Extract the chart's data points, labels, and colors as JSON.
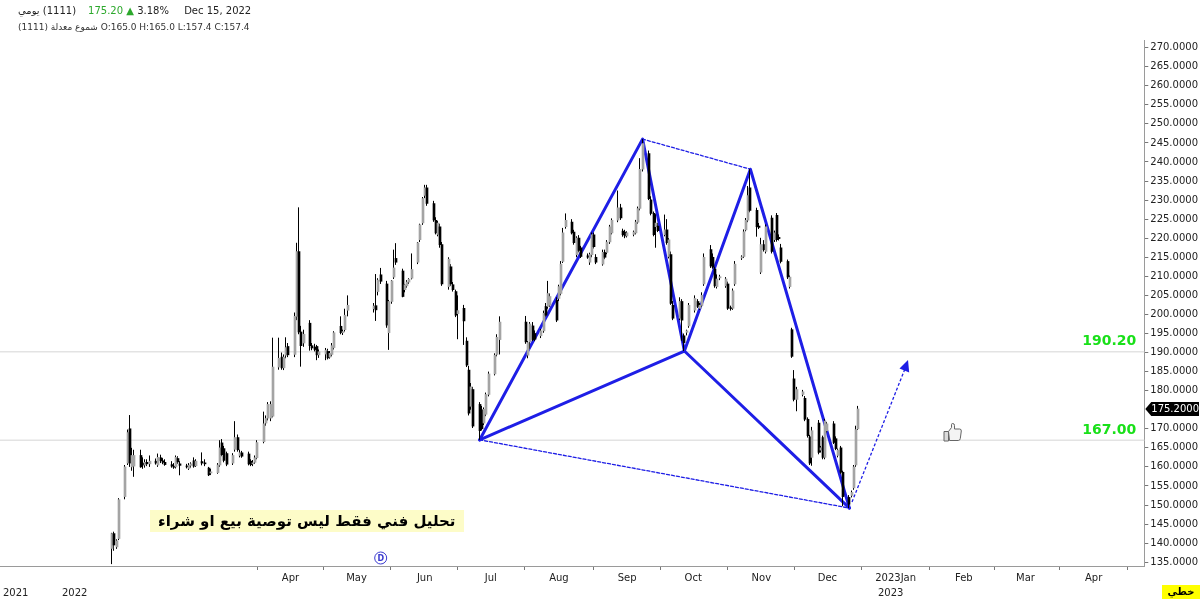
{
  "chart_data": {
    "type": "candlestick",
    "title": "(1111) يومي",
    "subtitle": "175.20 ▲ 3.18% Dec 15, 2022",
    "color": "#000000",
    "x": [
      "2022-01-10",
      "2022-01-11",
      "2022-01-12",
      "2022-01-13",
      "2022-01-16",
      "2022-01-17",
      "2022-01-18",
      "2022-01-19",
      "2022-01-20",
      "2022-01-23",
      "2022-01-24",
      "2022-01-25",
      "2022-01-26",
      "2022-01-27",
      "2022-01-30",
      "2022-01-31",
      "2022-02-01",
      "2022-02-02",
      "2022-02-03",
      "2022-02-06",
      "2022-02-07",
      "2022-02-08",
      "2022-02-09",
      "2022-02-10",
      "2022-02-13",
      "2022-02-14",
      "2022-02-15",
      "2022-02-16",
      "2022-02-17",
      "2022-02-20",
      "2022-02-21",
      "2022-02-23",
      "2022-02-24",
      "2022-02-27",
      "2022-02-28",
      "2022-03-01",
      "2022-03-02",
      "2022-03-03",
      "2022-03-06",
      "2022-03-07",
      "2022-03-08",
      "2022-03-09",
      "2022-03-10",
      "2022-03-13",
      "2022-03-14",
      "2022-03-15",
      "2022-03-16",
      "2022-03-17",
      "2022-03-20",
      "2022-03-21",
      "2022-03-22",
      "2022-03-23",
      "2022-03-24",
      "2022-03-27",
      "2022-03-28",
      "2022-03-29",
      "2022-03-30",
      "2022-03-31",
      "2022-04-03",
      "2022-04-04",
      "2022-04-05",
      "2022-04-06",
      "2022-04-07",
      "2022-04-10",
      "2022-04-11",
      "2022-04-12",
      "2022-04-13",
      "2022-04-14",
      "2022-04-17",
      "2022-04-18",
      "2022-04-19",
      "2022-04-20",
      "2022-04-21",
      "2022-04-24",
      "2022-04-25",
      "2022-04-26",
      "2022-04-27",
      "2022-05-09",
      "2022-05-10",
      "2022-05-11",
      "2022-05-12",
      "2022-05-15",
      "2022-05-16",
      "2022-05-17",
      "2022-05-18",
      "2022-05-19",
      "2022-05-22",
      "2022-05-23",
      "2022-05-24",
      "2022-05-25",
      "2022-05-26",
      "2022-05-29",
      "2022-05-30",
      "2022-05-31",
      "2022-06-01",
      "2022-06-02",
      "2022-06-05",
      "2022-06-06",
      "2022-06-07",
      "2022-06-08",
      "2022-06-09",
      "2022-06-12",
      "2022-06-13",
      "2022-06-14",
      "2022-06-15",
      "2022-06-16",
      "2022-06-19",
      "2022-06-20",
      "2022-06-21",
      "2022-06-22",
      "2022-06-23",
      "2022-06-26",
      "2022-06-27",
      "2022-06-28",
      "2022-06-29",
      "2022-06-30",
      "2022-07-03",
      "2022-07-04",
      "2022-07-05",
      "2022-07-17",
      "2022-07-18",
      "2022-07-19",
      "2022-07-20",
      "2022-07-21",
      "2022-07-24",
      "2022-07-25",
      "2022-07-26",
      "2022-07-27",
      "2022-07-28",
      "2022-07-31",
      "2022-08-01",
      "2022-08-02",
      "2022-08-03",
      "2022-08-04",
      "2022-08-07",
      "2022-08-08",
      "2022-08-09",
      "2022-08-10",
      "2022-08-11",
      "2022-08-14",
      "2022-08-15",
      "2022-08-16",
      "2022-08-17",
      "2022-08-18",
      "2022-08-21",
      "2022-08-22",
      "2022-08-23",
      "2022-08-24",
      "2022-08-25",
      "2022-08-28",
      "2022-08-29",
      "2022-08-30",
      "2022-08-31",
      "2022-09-01",
      "2022-09-04",
      "2022-09-05",
      "2022-09-06",
      "2022-09-07",
      "2022-09-08",
      "2022-09-11",
      "2022-09-12",
      "2022-09-13",
      "2022-09-14",
      "2022-09-15",
      "2022-09-18",
      "2022-09-19",
      "2022-09-20",
      "2022-09-21",
      "2022-09-22",
      "2022-09-25",
      "2022-09-26",
      "2022-09-27",
      "2022-09-28",
      "2022-09-29",
      "2022-10-02",
      "2022-10-03",
      "2022-10-04",
      "2022-10-05",
      "2022-10-06",
      "2022-10-09",
      "2022-10-10",
      "2022-10-11",
      "2022-10-12",
      "2022-10-13",
      "2022-10-16",
      "2022-10-17",
      "2022-10-18",
      "2022-10-19",
      "2022-10-20",
      "2022-10-23",
      "2022-10-24",
      "2022-10-25",
      "2022-10-26",
      "2022-10-27",
      "2022-10-30",
      "2022-10-31",
      "2022-11-01",
      "2022-11-02",
      "2022-11-03",
      "2022-11-06",
      "2022-11-07",
      "2022-11-08",
      "2022-11-09",
      "2022-11-10",
      "2022-11-13",
      "2022-11-14",
      "2022-11-15",
      "2022-11-16",
      "2022-11-17",
      "2022-11-20",
      "2022-11-21",
      "2022-11-22",
      "2022-11-23",
      "2022-11-24",
      "2022-11-27",
      "2022-11-28",
      "2022-11-29",
      "2022-11-30",
      "2022-12-01",
      "2022-12-04",
      "2022-12-05",
      "2022-12-06",
      "2022-12-07",
      "2022-12-08",
      "2022-12-11",
      "2022-12-12",
      "2022-12-13",
      "2022-12-14",
      "2022-12-15"
    ],
    "ohlc": [
      [
        138.6,
        142.7,
        134.5,
        142.5
      ],
      [
        142.5,
        143,
        138,
        139.5
      ],
      [
        139,
        141,
        138.5,
        140.6
      ],
      [
        141.2,
        151.8,
        140.8,
        151.4
      ],
      [
        152.2,
        160.5,
        151.5,
        160
      ],
      [
        161,
        169.8,
        160.5,
        169
      ],
      [
        170,
        173.6,
        160,
        161
      ],
      [
        160,
        165,
        159,
        163
      ],
      [
        160.2,
        164.5,
        157.4,
        163
      ],
      [
        163,
        164.5,
        159.8,
        160
      ],
      [
        161,
        162.5,
        159.5,
        160.5
      ],
      [
        160.5,
        162,
        159.8,
        161.2
      ],
      [
        161.2,
        162,
        160.2,
        160.8
      ],
      [
        160.8,
        163,
        160,
        161.5
      ],
      [
        161.5,
        162.2,
        160.6,
        161
      ],
      [
        160.5,
        163.5,
        160,
        162.5
      ],
      [
        162.4,
        163.2,
        161,
        161.6
      ],
      [
        161.6,
        162.3,
        160.7,
        161.2
      ],
      [
        161.2,
        162,
        160.3,
        160.6
      ],
      [
        160.6,
        161.5,
        159.8,
        160.2
      ],
      [
        160.2,
        161,
        159.5,
        159.9
      ],
      [
        160,
        163,
        159.6,
        162.5
      ],
      [
        162.2,
        162.8,
        160.8,
        161.3
      ],
      [
        160.8,
        161.5,
        157.8,
        160.4
      ],
      [
        160.2,
        160.8,
        159.6,
        160
      ],
      [
        159.6,
        161,
        159.2,
        160.4
      ],
      [
        160.4,
        161.2,
        159.8,
        160.8
      ],
      [
        161.6,
        162.5,
        159.8,
        160.2
      ],
      [
        160.3,
        162,
        160,
        161.5
      ],
      [
        161.4,
        163.8,
        160.4,
        161
      ],
      [
        161,
        162,
        160.2,
        160.8
      ],
      [
        159.7,
        160,
        157.6,
        157.9
      ],
      [
        158.4,
        159.5,
        157.9,
        158.7
      ],
      [
        158.5,
        161,
        158.2,
        160.5
      ],
      [
        160.5,
        167,
        160,
        165
      ],
      [
        166.3,
        167.3,
        162.8,
        163.2
      ],
      [
        164.8,
        165.5,
        161.2,
        161.7
      ],
      [
        163.5,
        164,
        160.2,
        160.7
      ],
      [
        161,
        163.6,
        160.5,
        163
      ],
      [
        164.6,
        172,
        164,
        167.7
      ],
      [
        167.7,
        168.5,
        164,
        164.5
      ],
      [
        163,
        164.5,
        162.5,
        163.7
      ],
      [
        163.7,
        164.2,
        162.4,
        162.8
      ],
      [
        163.4,
        164,
        160.4,
        160.8
      ],
      [
        161.5,
        162,
        160.2,
        160.6
      ],
      [
        160.8,
        161.8,
        160.2,
        161
      ],
      [
        161.2,
        163,
        160.8,
        162.4
      ],
      [
        162.4,
        167,
        162,
        166.4
      ],
      [
        166.6,
        174.5,
        166.2,
        171.3
      ],
      [
        171.5,
        173.5,
        170.8,
        172.7
      ],
      [
        172.8,
        177,
        172.2,
        176.4
      ],
      [
        172.8,
        177.2,
        172,
        176.4
      ],
      [
        173.3,
        193.9,
        173,
        186.2
      ],
      [
        186.2,
        193.9,
        185.5,
        188.5
      ],
      [
        188.8,
        190,
        185.5,
        186
      ],
      [
        186,
        189.5,
        185.4,
        188.8
      ],
      [
        189.3,
        194,
        188.5,
        191.3
      ],
      [
        191.6,
        192.5,
        188.8,
        189.4
      ],
      [
        189.5,
        200.5,
        188.8,
        199.5
      ],
      [
        199.5,
        218.8,
        198.5,
        216.5
      ],
      [
        216.5,
        228.1,
        194.8,
        195.4
      ],
      [
        195.4,
        197,
        186.3,
        191.8
      ],
      [
        192.5,
        196,
        191.5,
        194.8
      ],
      [
        197.7,
        198.5,
        190.5,
        191.8
      ],
      [
        191.8,
        192.5,
        190.6,
        191.2
      ],
      [
        191.4,
        192.3,
        190.3,
        190.8
      ],
      [
        191.6,
        192,
        188,
        189.4
      ],
      [
        189.4,
        190.8,
        188.6,
        190.2
      ],
      [
        189.6,
        191.2,
        188,
        190.6
      ],
      [
        190.3,
        191,
        188.2,
        188.6
      ],
      [
        188.8,
        190.4,
        188.4,
        189.8
      ],
      [
        189.5,
        192.5,
        189,
        191.8
      ],
      [
        191.3,
        195.6,
        190.8,
        195.2
      ],
      [
        196.9,
        199.5,
        194.8,
        195.2
      ],
      [
        195.2,
        196,
        194.6,
        195.5
      ],
      [
        196,
        201.5,
        195.5,
        199.8
      ],
      [
        201.1,
        205,
        199.5,
        202.4
      ],
      [
        201.5,
        203,
        200.5,
        202.2
      ],
      [
        202.3,
        210.6,
        198.3,
        201.2
      ],
      [
        206,
        209.5,
        205,
        209
      ],
      [
        210.4,
        212.2,
        208,
        208.7
      ],
      [
        208,
        208.8,
        196.5,
        197.2
      ],
      [
        195.2,
        203.8,
        190.7,
        203.4
      ],
      [
        203.4,
        209,
        202.8,
        208.8
      ],
      [
        209.8,
        217,
        209.3,
        212.2
      ],
      [
        214.7,
        218.7,
        213,
        213.7
      ],
      [
        211.4,
        212,
        204.5,
        204.7
      ],
      [
        206.5,
        208,
        205.8,
        207.8
      ],
      [
        207.5,
        209,
        207,
        208.5
      ],
      [
        208.5,
        209.5,
        208,
        209.2
      ],
      [
        209.5,
        216,
        209.2,
        211.8
      ],
      [
        213.7,
        219,
        213.2,
        218.8
      ],
      [
        219.6,
        223.8,
        219,
        223.5
      ],
      [
        224,
        230.8,
        223.5,
        230.4
      ],
      [
        231.2,
        234,
        230.5,
        233.2
      ],
      [
        233.2,
        234,
        228.5,
        229.1
      ],
      [
        229.1,
        229.8,
        224.3,
        224.8
      ],
      [
        224.7,
        225.5,
        221,
        221.4
      ],
      [
        221,
        224.5,
        220.5,
        224
      ],
      [
        223,
        223.8,
        217.5,
        218.3
      ],
      [
        218.3,
        219,
        207.5,
        208
      ],
      [
        207.3,
        215,
        206.5,
        214.5
      ],
      [
        212.5,
        213.2,
        207.5,
        208
      ],
      [
        207.8,
        208.5,
        206,
        206.5
      ],
      [
        206,
        206.5,
        199.3,
        199.8
      ],
      [
        200.2,
        205,
        193.5,
        201
      ],
      [
        201.6,
        202.5,
        192,
        198.3
      ],
      [
        193,
        194,
        186.2,
        186.7
      ],
      [
        185.4,
        186.5,
        173.5,
        174.1
      ],
      [
        175.9,
        182,
        175,
        181
      ],
      [
        180.3,
        181,
        170.2,
        170.7
      ],
      [
        176.4,
        177,
        167.1,
        169.5
      ],
      [
        175,
        176,
        169.6,
        170
      ],
      [
        171.5,
        175.6,
        171,
        175.1
      ],
      [
        173.8,
        179.5,
        173.3,
        179
      ],
      [
        179,
        185,
        178.5,
        184.4
      ],
      [
        184.4,
        189.8,
        184,
        189.3
      ],
      [
        189.5,
        194.8,
        189,
        194
      ],
      [
        193.4,
        199.5,
        189.5,
        198
      ],
      [
        198,
        199.6,
        192.3,
        192.8
      ],
      [
        189.3,
        193,
        188.5,
        192.6
      ],
      [
        192.8,
        198,
        191,
        197.5
      ],
      [
        197,
        198,
        193,
        193.4
      ],
      [
        195,
        195.8,
        193,
        193.5
      ],
      [
        194.4,
        196.2,
        193.8,
        195.7
      ],
      [
        195.7,
        201,
        195.2,
        200.3
      ],
      [
        202.1,
        203,
        199.4,
        199.8
      ],
      [
        202.1,
        208.8,
        201.5,
        205.5
      ],
      [
        202.4,
        205.5,
        202,
        204.7
      ],
      [
        203.7,
        204.5,
        198,
        198.5
      ],
      [
        204.2,
        207.8,
        203.5,
        207.3
      ],
      [
        205.5,
        214,
        205,
        213.2
      ],
      [
        213.9,
        222.7,
        213.5,
        221.4
      ],
      [
        223,
        226.5,
        222.5,
        224.7
      ],
      [
        224.2,
        225,
        221,
        221.4
      ],
      [
        221.6,
        222.2,
        218.3,
        218.8
      ],
      [
        215.7,
        220.5,
        215,
        220
      ],
      [
        220,
        220.8,
        216.3,
        216.8
      ],
      [
        217.5,
        218,
        214.8,
        215.2
      ],
      [
        215.4,
        216,
        214.6,
        215
      ],
      [
        213.7,
        216.2,
        213,
        215.7
      ],
      [
        215.7,
        221.5,
        215,
        220.9
      ],
      [
        220.9,
        221.5,
        217.3,
        217.8
      ],
      [
        215,
        215.8,
        213.2,
        213.7
      ],
      [
        213.2,
        217,
        212.8,
        216.3
      ],
      [
        216.3,
        217,
        214.5,
        215
      ],
      [
        216.3,
        219.5,
        215.8,
        219
      ],
      [
        219,
        223.5,
        218.5,
        223
      ],
      [
        221.4,
        225.2,
        221,
        224.7
      ],
      [
        224.7,
        232.5,
        224.2,
        228
      ],
      [
        228,
        229,
        224.8,
        225.3
      ],
      [
        221.9,
        222.5,
        220.4,
        220.9
      ],
      [
        221.6,
        222.2,
        220,
        220.6
      ],
      [
        220.6,
        221.8,
        220.2,
        221.4
      ],
      [
        221,
        222,
        220.5,
        221.6
      ],
      [
        221.4,
        224.8,
        221,
        224.2
      ],
      [
        224.2,
        228.3,
        223.8,
        227.8
      ],
      [
        227.8,
        241,
        227.3,
        238.1
      ],
      [
        238.1,
        246,
        237.5,
        244.8
      ],
      [
        242.2,
        243,
        230,
        230.4
      ],
      [
        230.1,
        231,
        226,
        226.5
      ],
      [
        226.5,
        227,
        220.5,
        220.9
      ],
      [
        223,
        226.3,
        217.5,
        224
      ],
      [
        223.2,
        224,
        221.6,
        222
      ],
      [
        220.9,
        226.2,
        220.5,
        222.2
      ],
      [
        222.2,
        225,
        218.3,
        218.8
      ],
      [
        215.2,
        220,
        214.7,
        219.6
      ],
      [
        215.7,
        216.5,
        202.5,
        202.9
      ],
      [
        202.4,
        203.5,
        198.5,
        199
      ],
      [
        199,
        204.5,
        198.5,
        203.4
      ],
      [
        203.4,
        204,
        193.1,
        198.5
      ],
      [
        194.4,
        195,
        190.4,
        192.6
      ],
      [
        195.3,
        196,
        194.5,
        195.7
      ],
      [
        197,
        203,
        196.5,
        202.4
      ],
      [
        201.1,
        205,
        200.5,
        204.2
      ],
      [
        203.4,
        204,
        201.7,
        202.1
      ],
      [
        201.6,
        203,
        201.2,
        202.4
      ],
      [
        202.4,
        205.8,
        202,
        205
      ],
      [
        208,
        216,
        207.5,
        215
      ],
      [
        217,
        218.2,
        212.2,
        212.7
      ],
      [
        215,
        216,
        212,
        212.4
      ],
      [
        211.9,
        212.5,
        207,
        207.5
      ],
      [
        207.3,
        210.5,
        206.8,
        209.3
      ],
      [
        209.6,
        210.4,
        209,
        209.9
      ],
      [
        207.5,
        209.8,
        207,
        209.3
      ],
      [
        208,
        208.6,
        201.2,
        201.6
      ],
      [
        201.8,
        202.3,
        201,
        201.5
      ],
      [
        201.6,
        206.8,
        201.2,
        206.2
      ],
      [
        208,
        214,
        207.5,
        213.2
      ],
      [
        214.8,
        215.5,
        214.3,
        215.1
      ],
      [
        215.2,
        222.3,
        214.8,
        221.7
      ],
      [
        222.2,
        225.3,
        221.8,
        224.7
      ],
      [
        224.7,
        233.7,
        224.2,
        231.2
      ],
      [
        233.2,
        238.1,
        226.8,
        227.3
      ],
      [
        227.3,
        228,
        220.4,
        223
      ],
      [
        223.2,
        224,
        222.4,
        222.8
      ],
      [
        211.1,
        220.1,
        210.6,
        218.3
      ],
      [
        218.3,
        219.5,
        216.5,
        217
      ],
      [
        216.5,
        223.6,
        216,
        223
      ],
      [
        225.3,
        226,
        216,
        216.5
      ],
      [
        219.6,
        222,
        219,
        221.4
      ],
      [
        226,
        226.6,
        219.1,
        219.6
      ],
      [
        220.2,
        221,
        219.4,
        219.9
      ],
      [
        217.5,
        218.5,
        213.4,
        213.9
      ],
      [
        213.9,
        214.4,
        209.3,
        209.8
      ],
      [
        207.3,
        210.2,
        206.8,
        209.8
      ],
      [
        196,
        196.5,
        188.6,
        189
      ],
      [
        183.1,
        185.4,
        177.2,
        177.7
      ],
      [
        177.7,
        181,
        174.6,
        180.3
      ],
      [
        179,
        180.2,
        178.5,
        179.7
      ],
      [
        178,
        178.6,
        172,
        172.5
      ],
      [
        172.5,
        173,
        167.7,
        168.2
      ],
      [
        167.9,
        168.4,
        160.5,
        161
      ],
      [
        162.5,
        170.5,
        160.3,
        169.5
      ],
      [
        171.5,
        172.3,
        163.3,
        163.8
      ],
      [
        164.4,
        165.5,
        163.8,
        165
      ],
      [
        167.7,
        168.2,
        162,
        162.5
      ],
      [
        162.5,
        172.6,
        162,
        172
      ],
      [
        169.5,
        171.8,
        169,
        171.3
      ],
      [
        171.3,
        172,
        166,
        166.4
      ],
      [
        167.4,
        168,
        164.4,
        164.8
      ],
      [
        163,
        164.8,
        162.5,
        164.4
      ],
      [
        165,
        165.5,
        158.2,
        158.6
      ],
      [
        158.6,
        159,
        149.7,
        152.2
      ],
      [
        152,
        152.6,
        149.2,
        150.2
      ],
      [
        152.5,
        153.8,
        152,
        153.3
      ],
      [
        154.5,
        160.5,
        154,
        160
      ],
      [
        160.5,
        170.8,
        160,
        169.8
      ],
      [
        170,
        176,
        169.7,
        175.2
      ]
    ],
    "colors": [
      "#a4a4a4",
      "#000000",
      "#a4a4a4",
      "#a4a4a4",
      "#a4a4a4",
      "#a4a4a4",
      "#000000",
      "#a4a4a4",
      "#a4a4a4",
      "#000000",
      "#000000",
      "#a4a4a4",
      "#000000",
      "#a4a4a4",
      "#000000",
      "#a4a4a4",
      "#000000",
      "#000000",
      "#000000",
      "#000000",
      "#000000",
      "#a4a4a4",
      "#000000",
      "#000000",
      "#000000",
      "#a4a4a4",
      "#a4a4a4",
      "#000000",
      "#a4a4a4",
      "#000000",
      "#000000",
      "#000000",
      "#a4a4a4",
      "#a4a4a4",
      "#a4a4a4",
      "#000000",
      "#000000",
      "#000000",
      "#a4a4a4",
      "#a4a4a4",
      "#000000",
      "#a4a4a4",
      "#000000",
      "#000000",
      "#000000",
      "#a4a4a4",
      "#a4a4a4",
      "#a4a4a4",
      "#a4a4a4",
      "#a4a4a4",
      "#a4a4a4",
      "#a4a4a4",
      "#a4a4a4",
      "#a4a4a4",
      "#000000",
      "#a4a4a4",
      "#a4a4a4",
      "#000000",
      "#a4a4a4",
      "#a4a4a4",
      "#000000",
      "#000000",
      "#a4a4a4",
      "#000000",
      "#000000",
      "#000000",
      "#000000",
      "#a4a4a4",
      "#a4a4a4",
      "#000000",
      "#a4a4a4",
      "#a4a4a4",
      "#a4a4a4",
      "#000000",
      "#a4a4a4",
      "#a4a4a4",
      "#a4a4a4",
      "#a4a4a4",
      "#000000",
      "#a4a4a4",
      "#000000",
      "#000000",
      "#a4a4a4",
      "#a4a4a4",
      "#a4a4a4",
      "#000000",
      "#000000",
      "#a4a4a4",
      "#a4a4a4",
      "#a4a4a4",
      "#a4a4a4",
      "#a4a4a4",
      "#a4a4a4",
      "#a4a4a4",
      "#a4a4a4",
      "#000000",
      "#000000",
      "#000000",
      "#a4a4a4",
      "#000000",
      "#000000",
      "#a4a4a4",
      "#000000",
      "#000000",
      "#000000",
      "#a4a4a4",
      "#000000",
      "#000000",
      "#000000",
      "#a4a4a4",
      "#000000",
      "#000000",
      "#000000",
      "#a4a4a4",
      "#a4a4a4",
      "#a4a4a4",
      "#a4a4a4",
      "#a4a4a4",
      "#a4a4a4",
      "#000000",
      "#a4a4a4",
      "#a4a4a4",
      "#000000",
      "#000000",
      "#a4a4a4",
      "#a4a4a4",
      "#000000",
      "#a4a4a4",
      "#a4a4a4",
      "#000000",
      "#a4a4a4",
      "#a4a4a4",
      "#a4a4a4",
      "#a4a4a4",
      "#000000",
      "#000000",
      "#a4a4a4",
      "#000000",
      "#000000",
      "#000000",
      "#a4a4a4",
      "#a4a4a4",
      "#000000",
      "#000000",
      "#a4a4a4",
      "#000000",
      "#a4a4a4",
      "#a4a4a4",
      "#a4a4a4",
      "#a4a4a4",
      "#000000",
      "#000000",
      "#000000",
      "#a4a4a4",
      "#a4a4a4",
      "#a4a4a4",
      "#a4a4a4",
      "#a4a4a4",
      "#a4a4a4",
      "#000000",
      "#000000",
      "#000000",
      "#a4a4a4",
      "#000000",
      "#a4a4a4",
      "#000000",
      "#a4a4a4",
      "#000000",
      "#000000",
      "#a4a4a4",
      "#000000",
      "#000000",
      "#a4a4a4",
      "#a4a4a4",
      "#a4a4a4",
      "#000000",
      "#a4a4a4",
      "#a4a4a4",
      "#a4a4a4",
      "#000000",
      "#000000",
      "#000000",
      "#a4a4a4",
      "#a4a4a4",
      "#a4a4a4",
      "#000000",
      "#000000",
      "#a4a4a4",
      "#a4a4a4",
      "#a4a4a4",
      "#a4a4a4",
      "#a4a4a4",
      "#a4a4a4",
      "#000000",
      "#000000",
      "#000000",
      "#a4a4a4",
      "#000000",
      "#a4a4a4",
      "#000000",
      "#a4a4a4",
      "#000000",
      "#000000",
      "#000000",
      "#000000",
      "#a4a4a4",
      "#000000",
      "#000000",
      "#a4a4a4",
      "#a4a4a4",
      "#000000",
      "#000000",
      "#000000",
      "#a4a4a4",
      "#000000",
      "#a4a4a4",
      "#000000",
      "#a4a4a4",
      "#a4a4a4",
      "#000000",
      "#000000",
      "#a4a4a4",
      "#000000",
      "#000000",
      "#000000",
      "#a4a4a4",
      "#a4a4a4",
      "#a4a4a4",
      "#a4a4a4"
    ],
    "series": [
      {
        "type": "line",
        "color": "#1e1ee6",
        "x": [
          "2022-06-26",
          "2022-09-08",
          "2022-09-27",
          "2022-10-27",
          "2022-12-11"
        ],
        "values": [
          167.1,
          246,
          190.4,
          238.1,
          149.2
        ]
      },
      {
        "type": "line",
        "color": "#1e1ee6",
        "x": [
          "2022-06-26",
          "2022-09-27",
          "2022-12-11"
        ],
        "values": [
          167.1,
          190.4,
          149.2
        ]
      },
      {
        "type": "line",
        "color": "#1e1ee6",
        "line_style": "dotted",
        "x": [
          "2022-06-26",
          "2022-12-11"
        ],
        "values": [
          167.1,
          149.2
        ]
      },
      {
        "type": "line",
        "color": "#1e1ee6",
        "line_style": "dotted",
        "x": [
          "2022-09-08",
          "2022-10-27"
        ],
        "values": [
          246,
          238.1
        ]
      }
    ],
    "marker": "none",
    "xlim": [
      "2021-11-20",
      "2023-04-24"
    ],
    "xticks": [
      {
        "value": "2022-04-01",
        "label": "Apr"
      },
      {
        "value": "2022-05-01",
        "label": "May"
      },
      {
        "value": "2022-06-01",
        "label": "Jun"
      },
      {
        "value": "2022-07-01",
        "label": "Jul"
      },
      {
        "value": "2022-08-01",
        "label": "Aug"
      },
      {
        "value": "2022-09-01",
        "label": "Sep"
      },
      {
        "value": "2022-10-01",
        "label": "Oct"
      },
      {
        "value": "2022-11-01",
        "label": "Nov"
      },
      {
        "value": "2022-12-01",
        "label": "Dec"
      },
      {
        "value": "2023-01-01",
        "label": "2023Jan"
      },
      {
        "value": "2023-02-01",
        "label": "Feb"
      },
      {
        "value": "2023-03-01",
        "label": "Mar"
      },
      {
        "value": "2023-04-01",
        "label": "Apr"
      }
    ],
    "ylim": [
      134,
      272
    ],
    "yticks": [
      {
        "value": 135,
        "label": "135.0000"
      },
      {
        "value": 140,
        "label": "140.0000"
      },
      {
        "value": 145,
        "label": "145.0000"
      },
      {
        "value": 150,
        "label": "150.0000"
      },
      {
        "value": 155,
        "label": "155.0000"
      },
      {
        "value": 160,
        "label": "160.0000"
      },
      {
        "value": 165,
        "label": "165.0000"
      },
      {
        "value": 170,
        "label": "170.0000"
      },
      {
        "value": 180,
        "label": "180.0000"
      },
      {
        "value": 185,
        "label": "185.0000"
      },
      {
        "value": 190,
        "label": "190.0000"
      },
      {
        "value": 195,
        "label": "195.0000"
      },
      {
        "value": 200,
        "label": "200.0000"
      },
      {
        "value": 205,
        "label": "205.0000"
      },
      {
        "value": 210,
        "label": "210.0000"
      },
      {
        "value": 215,
        "label": "215.0000"
      },
      {
        "value": 220,
        "label": "220.0000"
      },
      {
        "value": 225,
        "label": "225.0000"
      },
      {
        "value": 230,
        "label": "230.0000"
      },
      {
        "value": 235,
        "label": "235.0000"
      },
      {
        "value": 240,
        "label": "240.0000"
      },
      {
        "value": 245,
        "label": "245.0000"
      },
      {
        "value": 250,
        "label": "250.0000"
      },
      {
        "value": 255,
        "label": "255.0000"
      },
      {
        "value": 260,
        "label": "260.0000"
      },
      {
        "value": 265,
        "label": "265.0000"
      },
      {
        "value": 270,
        "label": "270.0000"
      }
    ],
    "ref_lines": [
      {
        "axis": "y",
        "value": 190.2,
        "label": "190.20",
        "color": "#e3e3e3"
      },
      {
        "axis": "y",
        "value": 167,
        "label": "167.00",
        "color": "#e3e3e3"
      }
    ],
    "annotations": [
      "شموع معدلة (1111) O:165.0 H:165.0 L:157.4 C:157.4",
      "تحليل فني فقط ليس توصية بيع او شراء",
      "خطي",
      "175.2000",
      {
        "text": "D",
        "x": "2022-05-12"
      },
      "2021",
      "2022",
      "2023"
    ]
  }
}
